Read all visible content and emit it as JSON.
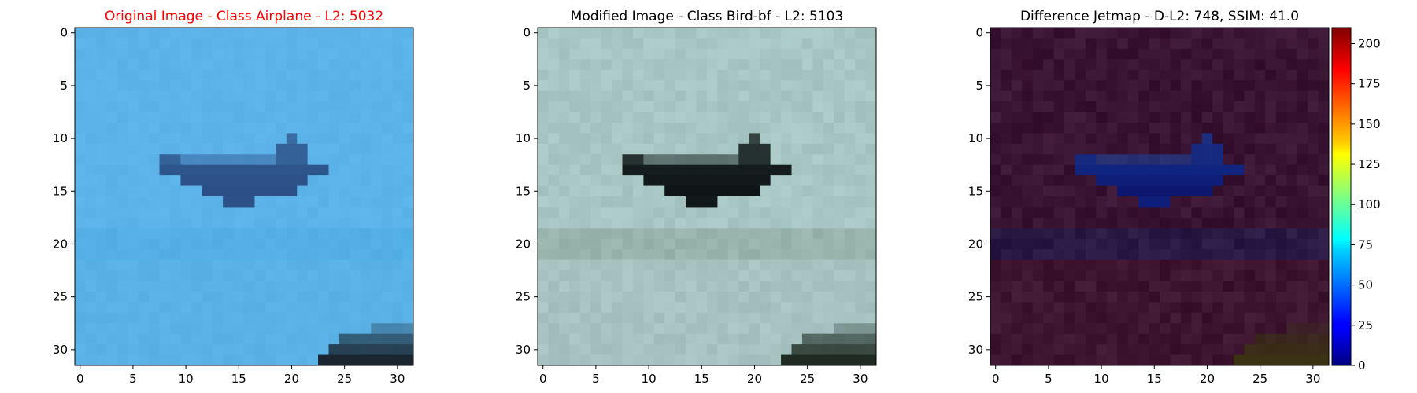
{
  "chart_data": [
    {
      "type": "heatmap",
      "title": "Original Image - Class Airplane - L2: 5032",
      "title_color": "#ff0000",
      "xticks": [
        "0",
        "5",
        "10",
        "15",
        "20",
        "25",
        "30"
      ],
      "yticks": [
        "0",
        "5",
        "10",
        "15",
        "20",
        "25",
        "30"
      ],
      "grid_size": [
        32,
        32
      ],
      "palette": {
        "sky": "#5cb3ea",
        "horizon": "#54afe6",
        "lower": "#5ab1e5",
        "plane": "#3e6ea8",
        "plane_dark": "#2b4f86",
        "ground": "#1b2530"
      }
    },
    {
      "type": "heatmap",
      "title": "Modified Image - Class Bird-bf - L2: 5103",
      "title_color": "#000000",
      "xticks": [
        "0",
        "5",
        "10",
        "15",
        "20",
        "25",
        "30"
      ],
      "yticks": [
        "0",
        "5",
        "10",
        "15",
        "20",
        "25",
        "30"
      ],
      "grid_size": [
        32,
        32
      ],
      "palette": {
        "sky": "#a7c6c4",
        "horizon": "#98b5ad",
        "lower": "#a6c3c2",
        "plane": "#2b3a35",
        "plane_dark": "#0f1517",
        "ground": "#1f2a22"
      }
    },
    {
      "type": "heatmap",
      "title": "Difference Jetmap - D-L2: 748, SSIM: 41.0",
      "title_color": "#000000",
      "xticks": [
        "0",
        "5",
        "10",
        "15",
        "20",
        "25",
        "30"
      ],
      "yticks": [
        "0",
        "5",
        "10",
        "15",
        "20",
        "25",
        "30"
      ],
      "grid_size": [
        32,
        32
      ],
      "colorbar": {
        "colormap": "jet",
        "range": [
          0,
          210
        ],
        "ticks": [
          "0",
          "25",
          "50",
          "75",
          "100",
          "125",
          "150",
          "175",
          "200"
        ]
      },
      "palette": {
        "sky": "#3a1533",
        "horizon": "#2a1845",
        "lower": "#3d1530",
        "plane": "#1e5cc0",
        "plane_dark": "#0d1770",
        "ground": "#3a3212"
      }
    }
  ]
}
